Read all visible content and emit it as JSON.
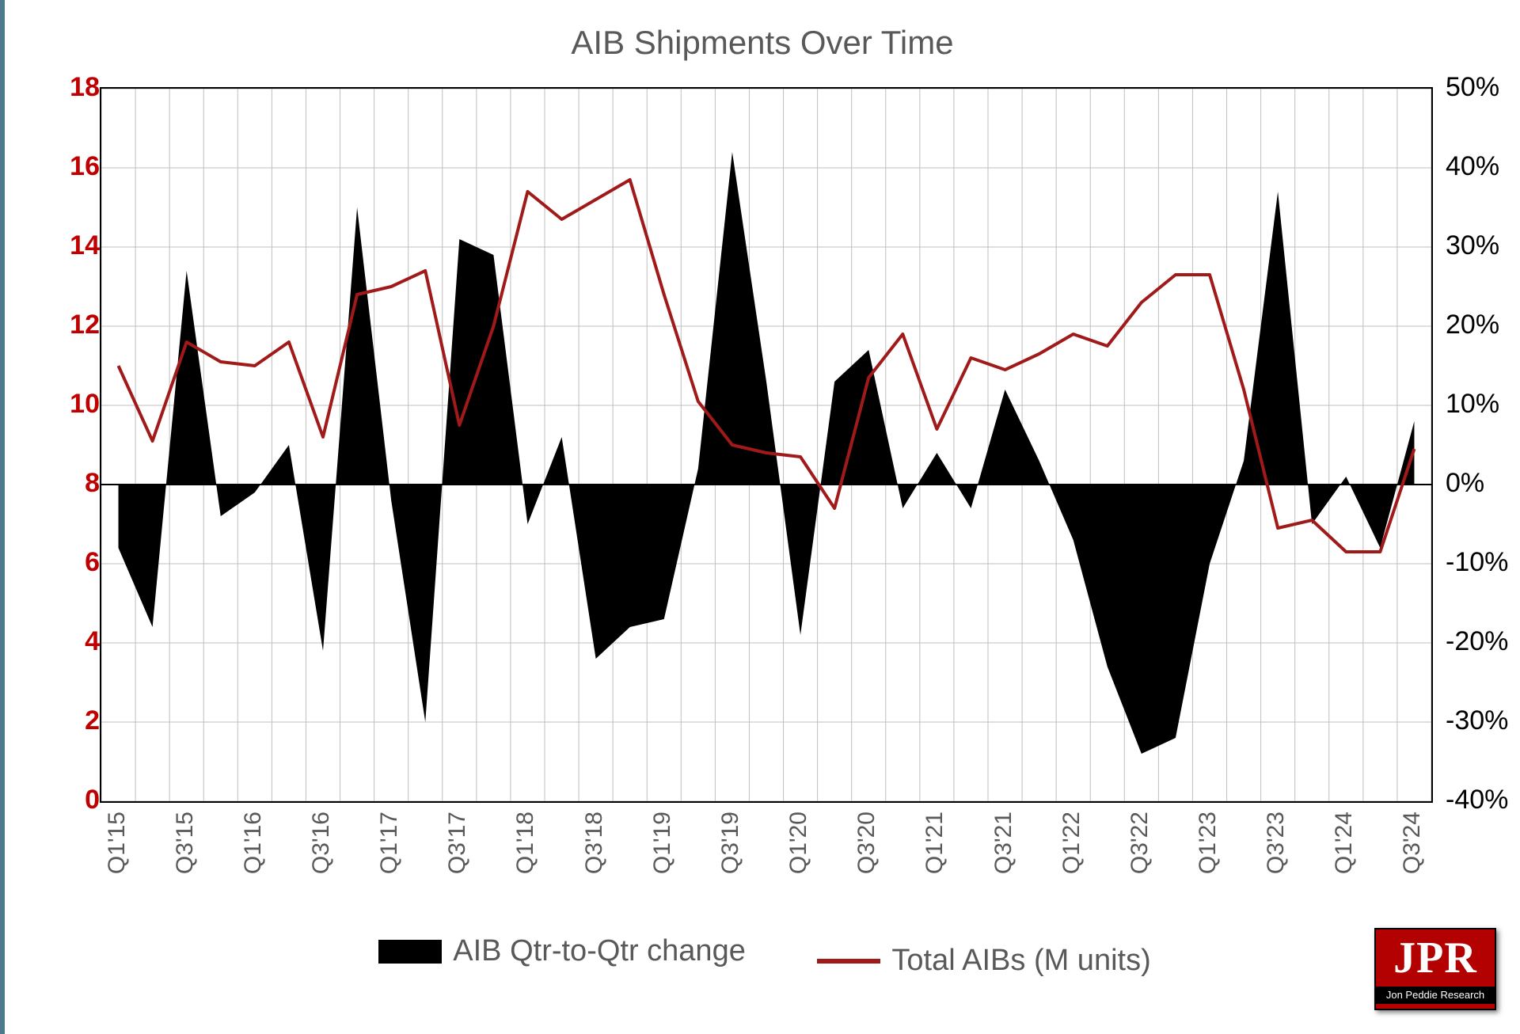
{
  "chart": {
    "type": "combo-area-line",
    "title": "AIB Shipments Over Time",
    "title_color": "#595959",
    "title_fontsize": 42,
    "background_color": "#ffffff",
    "plot_border_color": "#000000",
    "grid_color": "#bfbfbf",
    "grid_width": 1,
    "frame_accent_color": "#4a7a8c",
    "x_categories": [
      "Q1'15",
      "Q2'15",
      "Q3'15",
      "Q4'15",
      "Q1'16",
      "Q2'16",
      "Q3'16",
      "Q4'16",
      "Q1'17",
      "Q2'17",
      "Q3'17",
      "Q4'17",
      "Q1'18",
      "Q2'18",
      "Q3'18",
      "Q4'18",
      "Q1'19",
      "Q2'19",
      "Q3'19",
      "Q4'19",
      "Q1'20",
      "Q2'20",
      "Q3'20",
      "Q4'20",
      "Q1'21",
      "Q2'21",
      "Q3'21",
      "Q4'21",
      "Q1'22",
      "Q2'22",
      "Q3'22",
      "Q4'22",
      "Q1'23",
      "Q2'23",
      "Q3'23",
      "Q4'23",
      "Q1'24",
      "Q2'24",
      "Q3'24"
    ],
    "x_tick_labels": [
      "Q1'15",
      "Q3'15",
      "Q1'16",
      "Q3'16",
      "Q1'17",
      "Q3'17",
      "Q1'18",
      "Q3'18",
      "Q1'19",
      "Q3'19",
      "Q1'20",
      "Q3'20",
      "Q1'21",
      "Q3'21",
      "Q1'22",
      "Q3'22",
      "Q1'23",
      "Q3'23",
      "Q1'24",
      "Q3'24"
    ],
    "x_tick_indices": [
      0,
      2,
      4,
      6,
      8,
      10,
      12,
      14,
      16,
      18,
      20,
      22,
      24,
      26,
      28,
      30,
      32,
      34,
      36,
      38
    ],
    "x_label_color": "#595959",
    "x_label_fontsize": 30,
    "x_label_rotation_deg": -90,
    "left_axis": {
      "label": "Total AIBs (M units)",
      "min": 0,
      "max": 18,
      "step": 2,
      "ticks": [
        0,
        2,
        4,
        6,
        8,
        10,
        12,
        14,
        16,
        18
      ],
      "color": "#c00000",
      "fontsize": 34,
      "fontweight": "bold"
    },
    "right_axis": {
      "label": "AIB Qtr-to-Qtr change",
      "min": -40,
      "max": 50,
      "step": 10,
      "ticks_pct": [
        "-40%",
        "-30%",
        "-20%",
        "-10%",
        "0%",
        "10%",
        "20%",
        "30%",
        "40%",
        "50%"
      ],
      "tick_values": [
        -40,
        -30,
        -20,
        -10,
        0,
        10,
        20,
        30,
        40,
        50
      ],
      "color": "#000000",
      "fontsize": 34
    },
    "series_area": {
      "name": "AIB Qtr-to-Qtr change",
      "axis": "right",
      "color": "#000000",
      "fill_opacity": 1.0,
      "baseline_pct": 0,
      "values_pct": [
        -8,
        -18,
        27,
        -4,
        -1,
        5,
        -21,
        35,
        -2,
        -30,
        31,
        29,
        -5,
        6,
        -22,
        -18,
        -17,
        2,
        42,
        13,
        -19,
        13,
        17,
        -3,
        4,
        -3,
        12,
        3,
        -7,
        -23,
        -34,
        -32,
        -10,
        3,
        37,
        -5,
        1,
        -8,
        8
      ]
    },
    "series_line": {
      "name": "Total AIBs (M units)",
      "axis": "left",
      "color": "#a01a1a",
      "line_width": 4,
      "values": [
        11.0,
        9.1,
        11.6,
        11.1,
        11.0,
        11.6,
        9.2,
        12.8,
        13.0,
        13.4,
        9.5,
        12.0,
        15.4,
        14.7,
        15.2,
        15.7,
        12.8,
        10.1,
        9.0,
        8.8,
        8.7,
        7.4,
        10.7,
        11.8,
        9.4,
        11.2,
        10.9,
        11.3,
        11.8,
        11.5,
        12.6,
        13.3,
        13.3,
        10.4,
        6.9,
        7.1,
        6.3,
        6.3,
        8.9
      ]
    },
    "legend": {
      "items": [
        {
          "swatch": "area",
          "color": "#000000",
          "label": "AIB Qtr-to-Qtr change"
        },
        {
          "swatch": "line",
          "color": "#a01a1a",
          "label": "Total AIBs (M units)"
        }
      ],
      "fontsize": 38,
      "color": "#595959",
      "position": "bottom-center"
    }
  },
  "logo": {
    "text": "JPR",
    "subtitle": "Jon Peddie Research",
    "bg_color": "#b30000",
    "text_color": "#ffffff"
  }
}
